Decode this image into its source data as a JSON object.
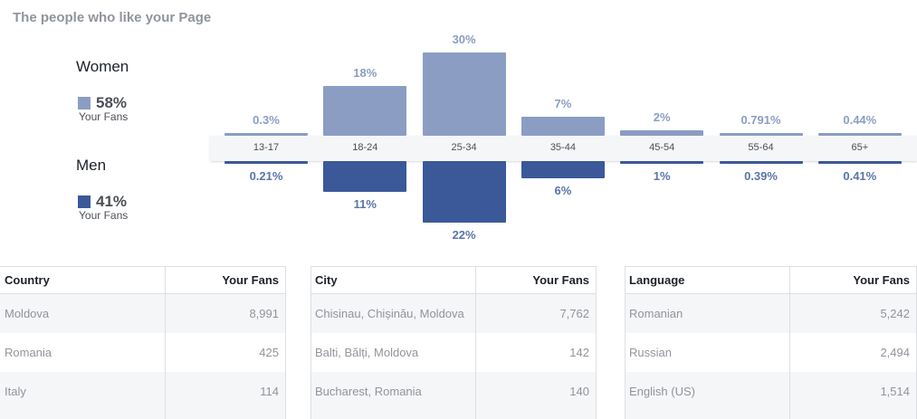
{
  "title": "The people who like your Page",
  "legend": {
    "women": {
      "label": "Women",
      "pct": "58%",
      "sub": "Your Fans",
      "color": "#8b9dc3"
    },
    "men": {
      "label": "Men",
      "pct": "41%",
      "sub": "Your Fans",
      "color": "#3b5998"
    }
  },
  "chart_data": {
    "type": "bar",
    "categories": [
      "13-17",
      "18-24",
      "25-34",
      "35-44",
      "45-54",
      "55-64",
      "65+"
    ],
    "series": [
      {
        "name": "Women",
        "values": [
          0.3,
          18,
          30,
          7,
          2,
          0.791,
          0.44
        ],
        "labels": [
          "0.3%",
          "18%",
          "30%",
          "7%",
          "2%",
          "0.791%",
          "0.44%"
        ],
        "color": "#8b9dc3"
      },
      {
        "name": "Men",
        "values": [
          0.21,
          11,
          22,
          6,
          1,
          0.39,
          0.41
        ],
        "labels": [
          "0.21%",
          "11%",
          "22%",
          "6%",
          "1%",
          "0.39%",
          "0.41%"
        ],
        "color": "#3b5998"
      }
    ]
  },
  "tables": [
    {
      "header": [
        "Country",
        "Your Fans"
      ],
      "rows": [
        [
          "Moldova",
          "8,991"
        ],
        [
          "Romania",
          "425"
        ],
        [
          "Italy",
          "114"
        ]
      ]
    },
    {
      "header": [
        "City",
        "Your Fans"
      ],
      "rows": [
        [
          "Chisinau, Chișinău, Moldova",
          "7,762"
        ],
        [
          "Balti, Bălți, Moldova",
          "142"
        ],
        [
          "Bucharest, Romania",
          "140"
        ]
      ]
    },
    {
      "header": [
        "Language",
        "Your Fans"
      ],
      "rows": [
        [
          "Romanian",
          "5,242"
        ],
        [
          "Russian",
          "2,494"
        ],
        [
          "English (US)",
          "1,514"
        ]
      ]
    }
  ]
}
